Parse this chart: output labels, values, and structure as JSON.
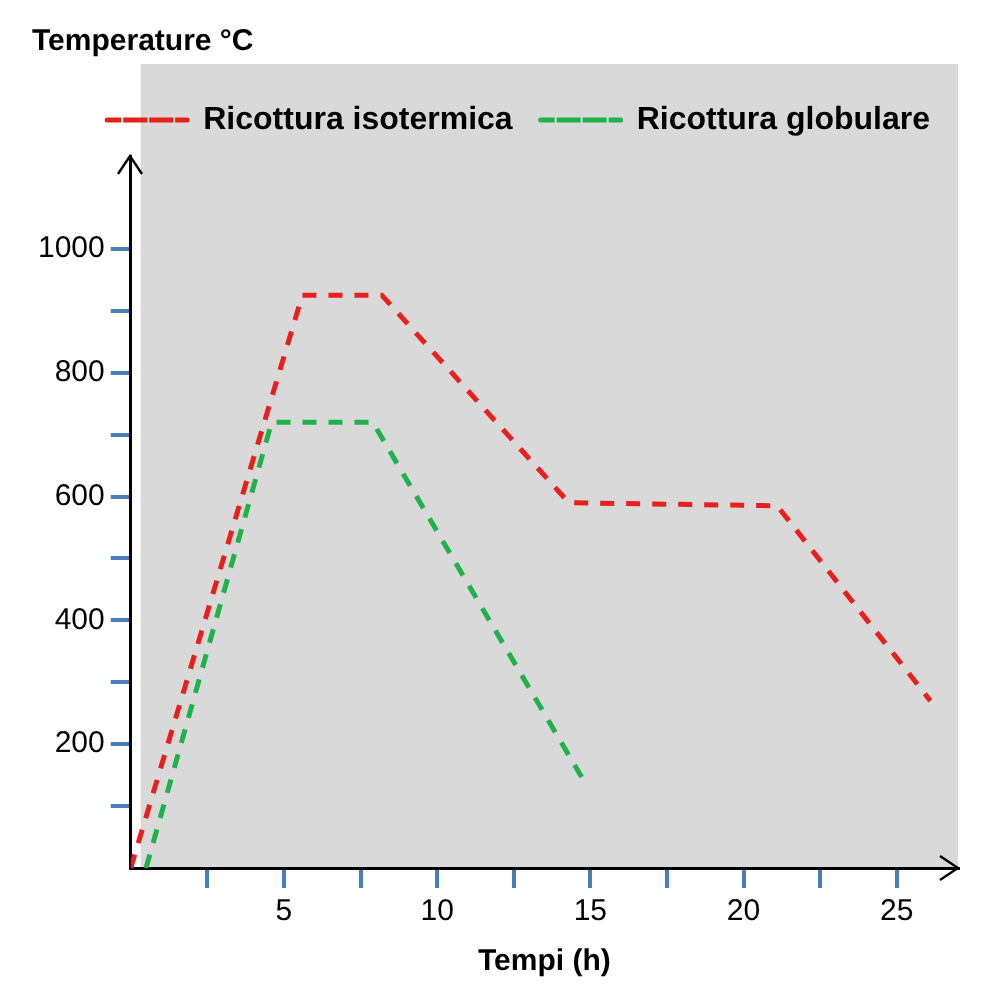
{
  "chart_data": {
    "type": "line",
    "ylabel": "Temperature °C",
    "xlabel": "Tempi (h)",
    "series": [
      {
        "name": "Ricottura isotermica",
        "color": "#e8201c",
        "line_style": "dashed",
        "x": [
          0,
          5.6,
          8.2,
          14.3,
          21.1,
          26.1
        ],
        "values": [
          0,
          925,
          925,
          590,
          585,
          270
        ]
      },
      {
        "name": "Ricottura globulare",
        "color": "#1fb24a",
        "line_style": "dashed",
        "x": [
          0.5,
          4.6,
          7.9,
          14.8
        ],
        "values": [
          0,
          720,
          720,
          140
        ]
      }
    ],
    "xlim": [
      0,
      27
    ],
    "xticks": [
      {
        "value": 2.5,
        "label": null
      },
      5,
      {
        "value": 7.5,
        "label": null
      },
      10,
      {
        "value": 12.5,
        "label": null
      },
      15,
      {
        "value": 17.5,
        "label": null
      },
      20,
      {
        "value": 22.5,
        "label": null
      },
      25
    ],
    "ylim": [
      0,
      1150
    ],
    "yticks": [
      {
        "value": 100,
        "label": null
      },
      200,
      {
        "value": 300,
        "label": null
      },
      400,
      {
        "value": 500,
        "label": null
      },
      600,
      {
        "value": 700,
        "label": null
      },
      800,
      {
        "value": 900,
        "label": null
      },
      1000
    ],
    "grid": false,
    "legend": "top right",
    "marker": "none"
  }
}
